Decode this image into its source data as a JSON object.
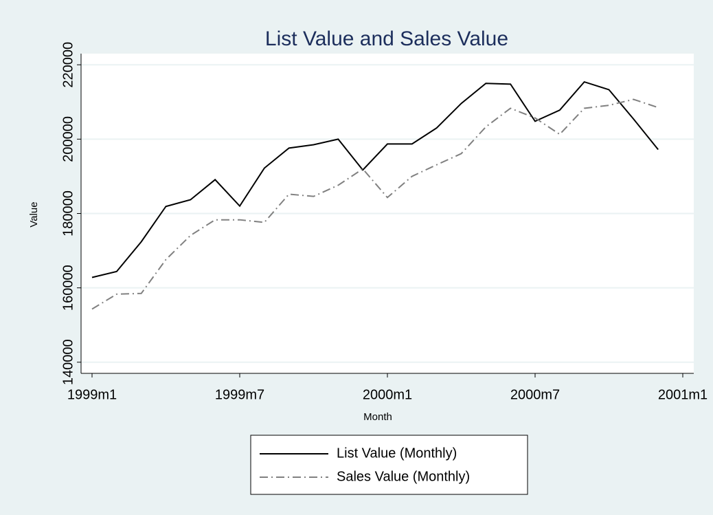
{
  "chart_data": {
    "type": "line",
    "title": "List Value and Sales Value",
    "x_label": "Month",
    "y_label": "Value",
    "x": [
      "1999m1",
      "1999m2",
      "1999m3",
      "1999m4",
      "1999m5",
      "1999m6",
      "1999m7",
      "1999m8",
      "1999m9",
      "1999m10",
      "1999m11",
      "1999m12",
      "2000m1",
      "2000m2",
      "2000m3",
      "2000m4",
      "2000m5",
      "2000m6",
      "2000m7",
      "2000m8",
      "2000m9",
      "2000m10",
      "2000m11",
      "2000m12"
    ],
    "series": [
      {
        "name": "List Value (Monthly)",
        "color": "#000000",
        "dash": "solid",
        "values": [
          162800,
          164400,
          172400,
          181900,
          183700,
          189100,
          182000,
          192200,
          197600,
          198500,
          200000,
          191700,
          198700,
          198700,
          203000,
          209600,
          215000,
          214800,
          204800,
          207800,
          215400,
          213300,
          205400,
          197200
        ]
      },
      {
        "name": "Sales Value (Monthly)",
        "color": "#808080",
        "dash": "dash-dot",
        "values": [
          154300,
          158300,
          158500,
          167600,
          174100,
          178300,
          178300,
          177600,
          185200,
          184600,
          187600,
          192000,
          184300,
          190000,
          193100,
          196100,
          203300,
          208300,
          205700,
          201300,
          208300,
          209100,
          210700,
          208500
        ]
      }
    ],
    "xlim": [
      "1999m1",
      "2001m1"
    ],
    "xticks": [
      "1999m1",
      "1999m7",
      "2000m1",
      "2000m7",
      "2001m1"
    ],
    "ylim": [
      137000,
      223000
    ],
    "yticks": [
      140000,
      160000,
      180000,
      200000,
      220000
    ],
    "grid": true,
    "legend": "bottom"
  }
}
